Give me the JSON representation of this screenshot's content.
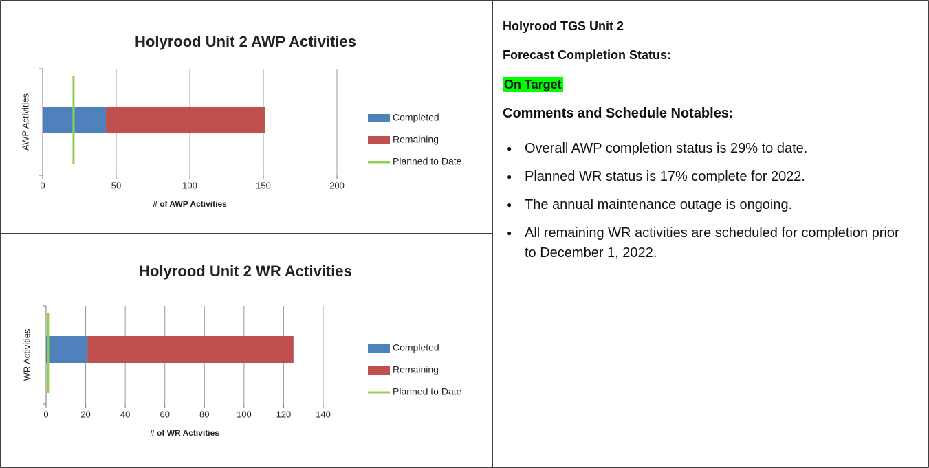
{
  "chart_data": [
    {
      "type": "bar",
      "orientation": "horizontal",
      "stacked": true,
      "title": "Holyrood Unit 2 AWP Activities",
      "x_label": "# of AWP Activities",
      "y_label": "AWP Activities",
      "categories": [
        null
      ],
      "series": [
        {
          "name": "Completed",
          "color": "#4f81bd",
          "values": [
            43
          ]
        },
        {
          "name": "Remaining",
          "color": "#c0504d",
          "values": [
            108
          ]
        },
        {
          "name": "Planned to Date",
          "color": "#92d050",
          "style": "line",
          "values": [
            21
          ]
        }
      ],
      "xlim": [
        0,
        200
      ],
      "xticks": [
        0,
        50,
        100,
        150,
        200
      ],
      "grid": true,
      "legend": "right"
    },
    {
      "type": "bar",
      "orientation": "horizontal",
      "stacked": true,
      "title": "Holyrood Unit 2 WR Activities",
      "x_label": "# of WR Activities",
      "y_label": "WR Activities",
      "categories": [
        null
      ],
      "series": [
        {
          "name": "Completed",
          "color": "#4f81bd",
          "values": [
            21
          ]
        },
        {
          "name": "Remaining",
          "color": "#c0504d",
          "values": [
            104
          ]
        },
        {
          "name": "Planned to Date",
          "color": "#92d050",
          "style": "line",
          "values": [
            1
          ]
        }
      ],
      "xlim": [
        0,
        140
      ],
      "xticks": [
        0,
        20,
        40,
        60,
        80,
        100,
        120,
        140
      ],
      "grid": true,
      "legend": "right"
    }
  ],
  "panel": {
    "title": "Holyrood TGS Unit 2",
    "status_label": "Forecast Completion Status:",
    "status": "On Target",
    "comments_heading": "Comments and Schedule Notables:",
    "bullets": [
      "Overall AWP completion status is 29% to date.",
      "Planned WR status is 17% complete for 2022.",
      "The annual maintenance outage is ongoing.",
      "All remaining WR activities are scheduled for completion prior to December 1, 2022."
    ]
  }
}
